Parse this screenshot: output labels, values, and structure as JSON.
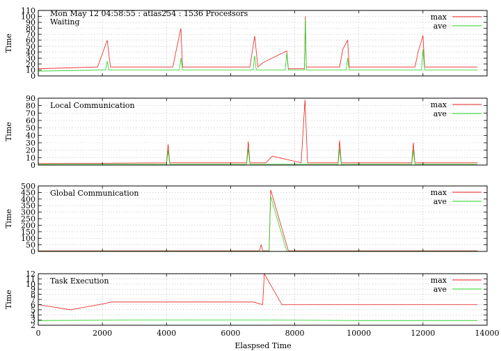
{
  "header": "Mon May 12 04:58:55 : atlas254 : 1536 Processors",
  "x_axis": {
    "label": "Elaspsed Time",
    "range": [
      0,
      14000
    ],
    "ticks": [
      0,
      2000,
      4000,
      6000,
      8000,
      10000,
      12000,
      14000
    ]
  },
  "legend_labels": [
    "max",
    "ave"
  ],
  "colors": {
    "max": "#e8201c",
    "ave": "#22d61e",
    "grid": "#bcbcbc"
  },
  "chart_data": [
    {
      "type": "line",
      "title": "Waiting",
      "ylabel": "Time",
      "ylim": [
        0,
        110
      ],
      "yticks": [
        0,
        10,
        20,
        30,
        40,
        50,
        60,
        70,
        80,
        90,
        100,
        110
      ],
      "grid": true,
      "legend": "top-right",
      "series": [
        {
          "name": "max",
          "values": [
            [
              0,
              12
            ],
            [
              1850,
              15
            ],
            [
              2150,
              60
            ],
            [
              2250,
              15
            ],
            [
              4200,
              15
            ],
            [
              4300,
              42
            ],
            [
              4450,
              80
            ],
            [
              4500,
              15
            ],
            [
              6600,
              15
            ],
            [
              6750,
              67
            ],
            [
              6850,
              15
            ],
            [
              7000,
              22
            ],
            [
              7750,
              42
            ],
            [
              7800,
              12
            ],
            [
              8300,
              12
            ],
            [
              8330,
              100
            ],
            [
              8360,
              15
            ],
            [
              9400,
              15
            ],
            [
              9500,
              45
            ],
            [
              9650,
              60
            ],
            [
              9700,
              15
            ],
            [
              11750,
              15
            ],
            [
              11850,
              40
            ],
            [
              12000,
              68
            ],
            [
              12050,
              15
            ],
            [
              13700,
              15
            ]
          ]
        },
        {
          "name": "ave",
          "values": [
            [
              0,
              8
            ],
            [
              2100,
              10
            ],
            [
              2150,
              25
            ],
            [
              2200,
              10
            ],
            [
              4400,
              10
            ],
            [
              4450,
              30
            ],
            [
              4500,
              10
            ],
            [
              6700,
              10
            ],
            [
              6750,
              34
            ],
            [
              6800,
              10
            ],
            [
              7700,
              10
            ],
            [
              7750,
              38
            ],
            [
              7800,
              10
            ],
            [
              8300,
              10
            ],
            [
              8330,
              95
            ],
            [
              8360,
              10
            ],
            [
              9600,
              10
            ],
            [
              9650,
              30
            ],
            [
              9700,
              10
            ],
            [
              11950,
              10
            ],
            [
              12000,
              45
            ],
            [
              12050,
              10
            ],
            [
              13700,
              10
            ]
          ]
        }
      ]
    },
    {
      "type": "line",
      "title": "Local Communication",
      "ylabel": "Time",
      "ylim": [
        0,
        90
      ],
      "yticks": [
        0,
        10,
        20,
        30,
        40,
        50,
        60,
        70,
        80,
        90
      ],
      "grid": true,
      "legend": "top-right",
      "series": [
        {
          "name": "max",
          "values": [
            [
              0,
              2
            ],
            [
              4000,
              3
            ],
            [
              4050,
              28
            ],
            [
              4100,
              3
            ],
            [
              6500,
              3
            ],
            [
              6550,
              32
            ],
            [
              6600,
              3
            ],
            [
              7100,
              3
            ],
            [
              7300,
              12
            ],
            [
              8200,
              3
            ],
            [
              8320,
              88
            ],
            [
              8400,
              3
            ],
            [
              9350,
              3
            ],
            [
              9400,
              33
            ],
            [
              9450,
              3
            ],
            [
              11650,
              3
            ],
            [
              11700,
              30
            ],
            [
              11750,
              3
            ],
            [
              13700,
              3
            ]
          ]
        },
        {
          "name": "ave",
          "values": [
            [
              0,
              1
            ],
            [
              4000,
              1
            ],
            [
              4050,
              20
            ],
            [
              4100,
              1
            ],
            [
              6500,
              1
            ],
            [
              6550,
              22
            ],
            [
              6600,
              1
            ],
            [
              9350,
              1
            ],
            [
              9400,
              22
            ],
            [
              9450,
              1
            ],
            [
              11650,
              1
            ],
            [
              11700,
              20
            ],
            [
              11750,
              1
            ],
            [
              13700,
              1
            ]
          ]
        }
      ]
    },
    {
      "type": "line",
      "title": "Global Communication",
      "ylabel": "Time",
      "ylim": [
        0,
        500
      ],
      "yticks": [
        0,
        50,
        100,
        150,
        200,
        250,
        300,
        350,
        400,
        450,
        500
      ],
      "grid": true,
      "legend": "top-right",
      "series": [
        {
          "name": "max",
          "values": [
            [
              0,
              5
            ],
            [
              6900,
              5
            ],
            [
              6950,
              50
            ],
            [
              7000,
              5
            ],
            [
              7200,
              5
            ],
            [
              7250,
              470
            ],
            [
              7800,
              5
            ],
            [
              13700,
              5
            ]
          ]
        },
        {
          "name": "ave",
          "values": [
            [
              0,
              2
            ],
            [
              7200,
              2
            ],
            [
              7250,
              420
            ],
            [
              7750,
              2
            ],
            [
              13700,
              2
            ]
          ]
        }
      ]
    },
    {
      "type": "line",
      "title": "Task Execution",
      "ylabel": "Time",
      "ylim": [
        2,
        12
      ],
      "yticks": [
        2,
        3,
        4,
        5,
        6,
        7,
        8,
        9,
        10,
        11,
        12
      ],
      "grid": true,
      "legend": "top-right",
      "series": [
        {
          "name": "max",
          "values": [
            [
              0,
              6
            ],
            [
              1000,
              5
            ],
            [
              1900,
              6
            ],
            [
              2300,
              6.5
            ],
            [
              4300,
              6.5
            ],
            [
              5500,
              6.5
            ],
            [
              6700,
              6.5
            ],
            [
              7000,
              6
            ],
            [
              7050,
              12
            ],
            [
              7600,
              6
            ],
            [
              8400,
              6
            ],
            [
              9800,
              6
            ],
            [
              11400,
              6
            ],
            [
              12000,
              6
            ],
            [
              13700,
              6
            ]
          ]
        },
        {
          "name": "ave",
          "values": [
            [
              0,
              2.9
            ],
            [
              3000,
              3
            ],
            [
              7000,
              3
            ],
            [
              10000,
              2.9
            ],
            [
              13700,
              2.9
            ]
          ]
        }
      ]
    }
  ]
}
